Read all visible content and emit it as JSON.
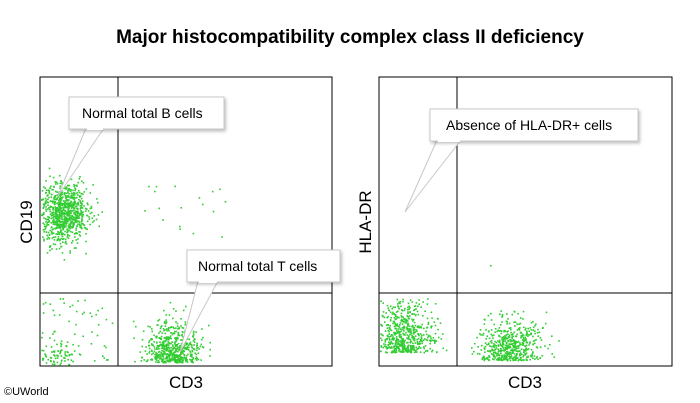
{
  "title": "Major histocompatibility complex class II deficiency",
  "copyright": "©UWorld",
  "colors": {
    "dot": "#33cc33",
    "frame": "#000000",
    "callout_fill": "#ffffff",
    "callout_border": "#c8c8c8"
  },
  "panels": [
    {
      "id": "left",
      "xlabel": "CD3",
      "ylabel": "CD19",
      "callouts": [
        {
          "text": "Normal total B cells",
          "points_to": "B-cell population (CD19+ CD3-)"
        },
        {
          "text": "Normal total T cells",
          "points_to": "T-cell population (CD3+ CD19-)"
        }
      ]
    },
    {
      "id": "right",
      "xlabel": "CD3",
      "ylabel": "HLA-DR",
      "callouts": [
        {
          "text": "Absence of HLA-DR+ cells",
          "points_to": "HLA-DR+ CD3- quadrant (empty)"
        }
      ]
    }
  ]
}
